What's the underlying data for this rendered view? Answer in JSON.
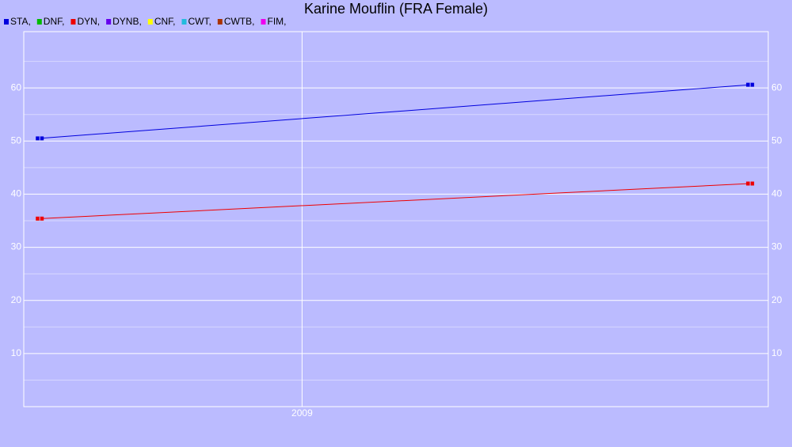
{
  "chart_data": {
    "type": "line",
    "title": "Karine Mouflin (FRA Female)",
    "x": [
      2008.623,
      2009.644
    ],
    "xlim": [
      2008.6,
      2009.67
    ],
    "xticks": [
      2009
    ],
    "ylim": [
      0,
      70
    ],
    "yticks": [
      10,
      20,
      30,
      40,
      50,
      60
    ],
    "grid": true,
    "series": [
      {
        "name": "STA,",
        "color": "#0000dd",
        "values": [
          50.5,
          60.6
        ]
      },
      {
        "name": "DNF,",
        "color": "#00bb00",
        "values": [
          null,
          null
        ]
      },
      {
        "name": "DYN,",
        "color": "#ee0000",
        "values": [
          35.4,
          42
        ]
      },
      {
        "name": "DYNB,",
        "color": "#6600ee",
        "values": [
          null,
          null
        ]
      },
      {
        "name": "CNF,",
        "color": "#ffff00",
        "values": [
          null,
          null
        ]
      },
      {
        "name": "CWT,",
        "color": "#22bbdd",
        "values": [
          null,
          null
        ]
      },
      {
        "name": "CWTB,",
        "color": "#aa3300",
        "values": [
          null,
          null
        ]
      },
      {
        "name": "FIM,",
        "color": "#ee00ee",
        "values": [
          null,
          null
        ]
      }
    ]
  }
}
